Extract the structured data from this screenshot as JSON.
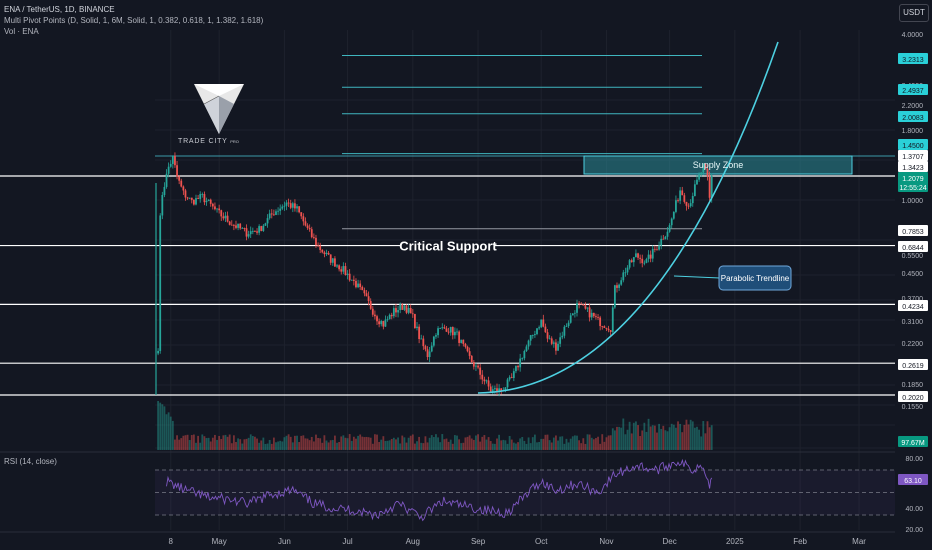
{
  "header": {
    "symbol_line": "ENA / TetherUS, 1D, BINANCE",
    "indicator_line": "Multi Pivot Points (D, Solid, 1, 6M, Solid, 1, 0.382, 0.618, 1, 1.382, 1.618)",
    "volume_line": "Vol · ENA"
  },
  "currency_button": "USDT",
  "logo": {
    "name": "TRADE CITY",
    "suffix": "PRO"
  },
  "colors": {
    "background": "#131722",
    "up": "#26a69a",
    "down": "#ef5350",
    "accent": "#4dd0e1",
    "rsi": "#7e57c2"
  },
  "chart_data": [
    {
      "type": "candlestick",
      "price_axis": {
        "scale": "log",
        "ticks": [
          "4.0000",
          "2.4000",
          "2.2000",
          "2.0000",
          "1.8000",
          "1.0000",
          "0.8000",
          "0.5500",
          "0.4500",
          "0.3700",
          "0.3100",
          "0.2200",
          "0.1850",
          "0.1550"
        ],
        "labels": [
          {
            "value": "3.2313",
            "color": "#2ad0d8"
          },
          {
            "value": "2.4937",
            "color": "#2ad0d8"
          },
          {
            "value": "2.0083",
            "color": "#2ad0d8"
          },
          {
            "value": "1.4500",
            "color": "#2ad0d8"
          },
          {
            "value": "1.3707",
            "color": "#ffffff"
          },
          {
            "value": "1.3423",
            "color": "#ffffff"
          },
          {
            "value": "1.2079",
            "color": "#089981"
          },
          {
            "value": "12:55:24",
            "color": "#089981"
          },
          {
            "value": "0.7853",
            "color": "#ffffff"
          },
          {
            "value": "0.6844",
            "color": "#ffffff"
          },
          {
            "value": "0.4234",
            "color": "#ffffff"
          },
          {
            "value": "0.2619",
            "color": "#ffffff"
          },
          {
            "value": "0.2020",
            "color": "#ffffff"
          },
          {
            "value": "97.67M",
            "color": "#089981"
          }
        ]
      },
      "time_axis": [
        "8",
        "May",
        "Jun",
        "Jul",
        "Aug",
        "Sep",
        "Oct",
        "Nov",
        "Dec",
        "2025",
        "Feb",
        "Mar"
      ],
      "horizontal_levels": [
        1.2079,
        0.6844,
        0.4234,
        0.2619,
        0.202
      ],
      "pivot_levels": [
        3.2313,
        2.4937,
        2.0083,
        1.45,
        0.7853
      ],
      "annotations": {
        "critical_support": "Critical Support",
        "supply_zone": "Supply Zone",
        "parabolic_trendline": "Parabolic Trendline"
      },
      "price_path": [
        [
          "2024-04-02",
          0.3
        ],
        [
          "2024-04-03",
          0.85
        ],
        [
          "2024-04-04",
          1.05
        ],
        [
          "2024-04-07",
          1.3
        ],
        [
          "2024-04-09",
          1.4
        ],
        [
          "2024-04-11",
          1.2
        ],
        [
          "2024-04-14",
          1.05
        ],
        [
          "2024-04-18",
          0.98
        ],
        [
          "2024-04-23",
          1.02
        ],
        [
          "2024-04-30",
          0.9
        ],
        [
          "2024-05-07",
          0.82
        ],
        [
          "2024-05-14",
          0.76
        ],
        [
          "2024-05-20",
          0.78
        ],
        [
          "2024-05-27",
          0.9
        ],
        [
          "2024-06-02",
          0.97
        ],
        [
          "2024-06-07",
          0.92
        ],
        [
          "2024-06-12",
          0.78
        ],
        [
          "2024-06-17",
          0.68
        ],
        [
          "2024-06-22",
          0.62
        ],
        [
          "2024-06-28",
          0.57
        ],
        [
          "2024-07-05",
          0.5
        ],
        [
          "2024-07-10",
          0.44
        ],
        [
          "2024-07-15",
          0.38
        ],
        [
          "2024-07-18",
          0.36
        ],
        [
          "2024-07-23",
          0.4
        ],
        [
          "2024-07-28",
          0.42
        ],
        [
          "2024-08-01",
          0.38
        ],
        [
          "2024-08-05",
          0.31
        ],
        [
          "2024-08-08",
          0.28
        ],
        [
          "2024-08-12",
          0.34
        ],
        [
          "2024-08-17",
          0.35
        ],
        [
          "2024-08-22",
          0.33
        ],
        [
          "2024-08-27",
          0.28
        ],
        [
          "2024-09-02",
          0.24
        ],
        [
          "2024-09-07",
          0.21
        ],
        [
          "2024-09-12",
          0.21
        ],
        [
          "2024-09-17",
          0.23
        ],
        [
          "2024-09-22",
          0.28
        ],
        [
          "2024-09-27",
          0.33
        ],
        [
          "2024-10-01",
          0.37
        ],
        [
          "2024-10-04",
          0.32
        ],
        [
          "2024-10-08",
          0.3
        ],
        [
          "2024-10-13",
          0.36
        ],
        [
          "2024-10-18",
          0.42
        ],
        [
          "2024-10-23",
          0.4
        ],
        [
          "2024-10-28",
          0.37
        ],
        [
          "2024-11-03",
          0.35
        ],
        [
          "2024-11-05",
          0.48
        ],
        [
          "2024-11-10",
          0.56
        ],
        [
          "2024-11-15",
          0.63
        ],
        [
          "2024-11-20",
          0.6
        ],
        [
          "2024-11-25",
          0.68
        ],
        [
          "2024-12-01",
          0.8
        ],
        [
          "2024-12-06",
          1.08
        ],
        [
          "2024-12-10",
          0.95
        ],
        [
          "2024-12-14",
          1.15
        ],
        [
          "2024-12-17",
          1.3
        ],
        [
          "2024-12-19",
          1.18
        ],
        [
          "2024-12-20",
          1.0
        ],
        [
          "2024-12-21",
          1.21
        ]
      ]
    },
    {
      "type": "line",
      "title": "RSI (14, close)",
      "value_label": "63.10",
      "y_ticks": [
        "80.00",
        "40.00",
        "20.00"
      ],
      "bands": [
        70,
        50,
        30
      ],
      "series": [
        [
          "2024-04-06",
          60
        ],
        [
          "2024-04-15",
          52
        ],
        [
          "2024-04-25",
          46
        ],
        [
          "2024-05-05",
          44
        ],
        [
          "2024-05-15",
          40
        ],
        [
          "2024-05-25",
          48
        ],
        [
          "2024-06-05",
          52
        ],
        [
          "2024-06-15",
          40
        ],
        [
          "2024-06-25",
          36
        ],
        [
          "2024-07-05",
          34
        ],
        [
          "2024-07-15",
          30
        ],
        [
          "2024-07-25",
          40
        ],
        [
          "2024-08-05",
          28
        ],
        [
          "2024-08-15",
          42
        ],
        [
          "2024-08-25",
          38
        ],
        [
          "2024-09-05",
          34
        ],
        [
          "2024-09-15",
          32
        ],
        [
          "2024-09-25",
          50
        ],
        [
          "2024-10-01",
          60
        ],
        [
          "2024-10-08",
          52
        ],
        [
          "2024-10-18",
          58
        ],
        [
          "2024-10-28",
          50
        ],
        [
          "2024-11-05",
          66
        ],
        [
          "2024-11-15",
          74
        ],
        [
          "2024-11-25",
          70
        ],
        [
          "2024-12-05",
          78
        ],
        [
          "2024-12-12",
          70
        ],
        [
          "2024-12-17",
          76
        ],
        [
          "2024-12-20",
          55
        ],
        [
          "2024-12-21",
          63
        ]
      ]
    }
  ]
}
